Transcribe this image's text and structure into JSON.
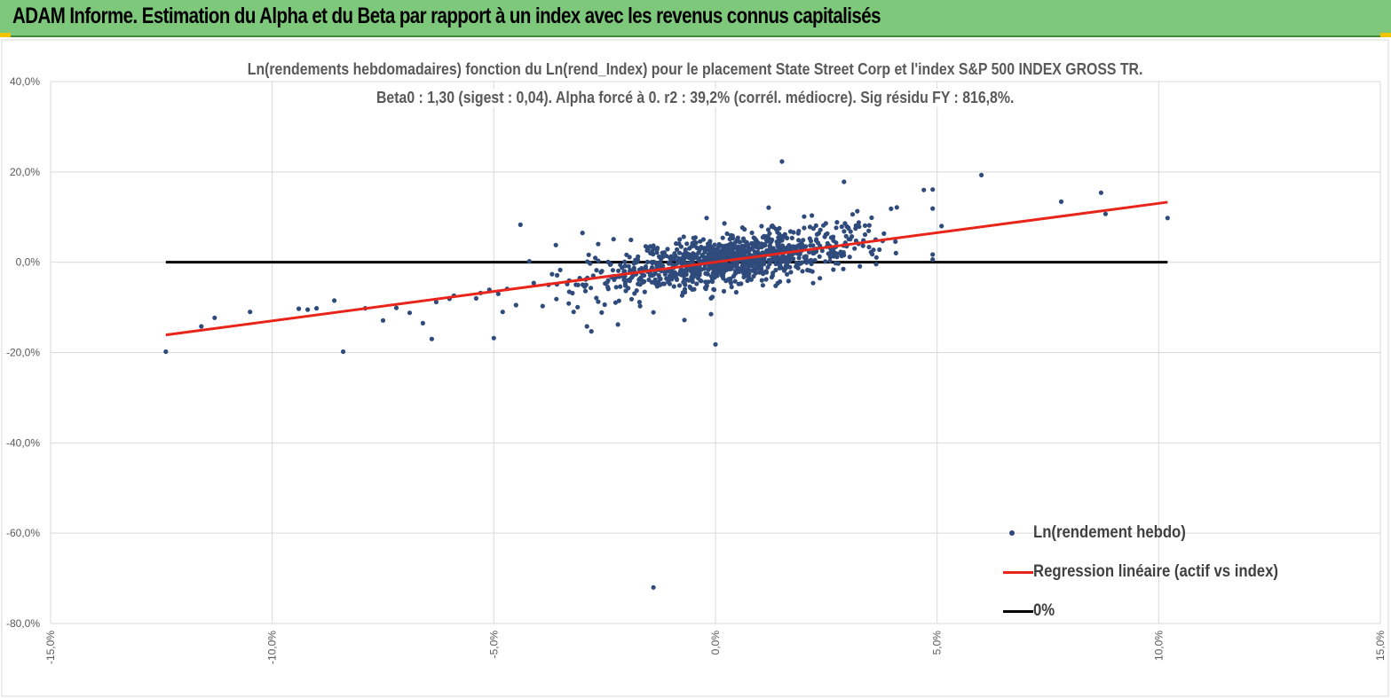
{
  "banner": {
    "title": "ADAM Informe. Estimation du Alpha et du Beta par rapport à un index avec les revenus connus capitalisés"
  },
  "colors": {
    "banner_bg": "#7dc87a",
    "accent": "#f2c400",
    "scatter": "#2f4b7c",
    "regression": "#e8251b",
    "zero_line": "#000000",
    "grid": "#d9d9d9"
  },
  "chart_data": {
    "type": "scatter",
    "title": "Ln(rendements hebdomadaires) fonction du Ln(rend_Index) pour le placement State Street Corp et l'index S&P 500 INDEX GROSS TR.",
    "subtitle": "Beta0 : 1,30  (sigest : 0,04). Alpha forcé à 0. r2 : 39,2% (corrél. médiocre). Sig résidu FY : 816,8%.",
    "xlabel": "",
    "ylabel": "",
    "xlim": [
      -15,
      15
    ],
    "ylim": [
      -80,
      40
    ],
    "x_ticks": [
      -15,
      -10,
      -5,
      0,
      5,
      10,
      15
    ],
    "x_tick_labels": [
      "-15,0%",
      "-10,0%",
      "-5,0%",
      "0,0%",
      "5,0%",
      "10,0%",
      "15,0%"
    ],
    "y_ticks": [
      40,
      20,
      0,
      -20,
      -40,
      -60,
      -80
    ],
    "y_tick_labels": [
      "40,0%",
      "20,0%",
      "0,0%",
      "-20,0%",
      "-40,0%",
      "-60,0%",
      "-80,0%"
    ],
    "grid": true,
    "legend_position": "bottom-right",
    "series": [
      {
        "name": "Ln(rendement hebdo)",
        "kind": "scatter",
        "points": [
          [
            -12.4,
            -19.8
          ],
          [
            -11.6,
            -14.2
          ],
          [
            -11.3,
            -12.3
          ],
          [
            -10.5,
            -11.0
          ],
          [
            -9.4,
            -10.3
          ],
          [
            -9.2,
            -10.5
          ],
          [
            -8.6,
            -8.5
          ],
          [
            -8.4,
            -19.8
          ],
          [
            -7.9,
            -10.2
          ],
          [
            -7.5,
            -12.9
          ],
          [
            -7.2,
            -10.1
          ],
          [
            -6.9,
            -11.2
          ],
          [
            -6.6,
            -13.5
          ],
          [
            -6.4,
            -17.0
          ],
          [
            -6.3,
            -8.8
          ],
          [
            -6.0,
            -8.1
          ],
          [
            -5.9,
            -7.4
          ],
          [
            -5.4,
            -8.0
          ],
          [
            -5.1,
            -6.1
          ],
          [
            -5.0,
            -16.8
          ],
          [
            -4.9,
            -7.0
          ],
          [
            -4.8,
            -11.0
          ],
          [
            -4.7,
            -5.9
          ],
          [
            -4.5,
            -9.5
          ],
          [
            -4.4,
            8.3
          ],
          [
            -4.2,
            0.2
          ],
          [
            -4.1,
            -4.6
          ],
          [
            -3.9,
            -9.7
          ],
          [
            -3.6,
            3.8
          ],
          [
            -3.2,
            -11.0
          ],
          [
            -3.0,
            6.5
          ],
          [
            -2.9,
            -14.2
          ],
          [
            -2.8,
            -15.3
          ],
          [
            -2.5,
            -9.4
          ],
          [
            -2.2,
            -13.8
          ],
          [
            -2.3,
            5.1
          ],
          [
            -1.7,
            -9.7
          ],
          [
            -1.4,
            2.9
          ],
          [
            -1.4,
            -11.1
          ],
          [
            -1.4,
            -72.0
          ],
          [
            -0.7,
            -12.8
          ],
          [
            -0.1,
            -11.5
          ],
          [
            -0.2,
            9.8
          ],
          [
            -0.1,
            -8.0
          ],
          [
            0.0,
            -18.2
          ],
          [
            1.2,
            12.1
          ],
          [
            1.5,
            22.3
          ],
          [
            2.0,
            10.1
          ],
          [
            2.9,
            17.8
          ],
          [
            3.2,
            11.3
          ],
          [
            4.7,
            16.0
          ],
          [
            4.9,
            16.1
          ],
          [
            4.9,
            11.9
          ],
          [
            4.9,
            1.7
          ],
          [
            4.9,
            0.6
          ],
          [
            5.1,
            8.0
          ],
          [
            6.0,
            19.3
          ],
          [
            7.8,
            13.4
          ],
          [
            8.7,
            15.4
          ],
          [
            8.8,
            10.7
          ],
          [
            10.2,
            9.8
          ],
          [
            -9.0,
            -10.2
          ],
          [
            -5.3,
            -6.8
          ]
        ],
        "cloud": {
          "description": "dense cluster of ~1000 weekly observations following y ≈ 1.30·x",
          "count": 1050,
          "x_mean": 0.35,
          "x_sd": 1.55,
          "beta": 1.3,
          "residual_sd": 2.7
        }
      },
      {
        "name": "Regression linéaire (actif vs index)",
        "kind": "line",
        "x": [
          -12.4,
          10.2
        ],
        "values": [
          -16.1,
          13.3
        ]
      },
      {
        "name": "0%",
        "kind": "line",
        "x": [
          -12.4,
          10.2
        ],
        "values": [
          0,
          0
        ]
      }
    ]
  }
}
